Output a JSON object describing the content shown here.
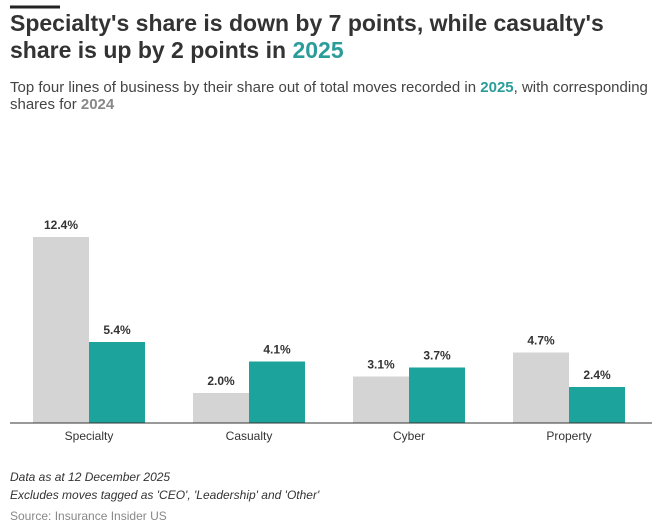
{
  "chart_data": {
    "type": "bar",
    "title": "Specialty's share is down by 7 points, while casualty's share is up by 2 points in",
    "subtitle_parts": [
      "Top four lines of business by their share out of total moves recorded in",
      ", with corresponding shares for"
    ],
    "categories": [
      "Specialty",
      "Casualty",
      "Cyber",
      "Property"
    ],
    "series": [
      {
        "name": "2024",
        "color": "#d4d4d4",
        "values": [
          12.4,
          2.0,
          3.1,
          4.7
        ],
        "value_labels": [
          "12.4%",
          "2.0%",
          "3.1%",
          "4.7%"
        ]
      },
      {
        "name": "2025",
        "color": "#1ba39c",
        "values": [
          5.4,
          4.1,
          3.7,
          2.4
        ],
        "value_labels": [
          "5.4%",
          "4.1%",
          "3.7%",
          "2.4%"
        ]
      }
    ],
    "notes": [
      "Data as at 12 December 2025",
      "Excludes moves tagged as 'CEO', 'Leadership' and 'Other'"
    ],
    "source": "Source: Insurance Insider US"
  }
}
